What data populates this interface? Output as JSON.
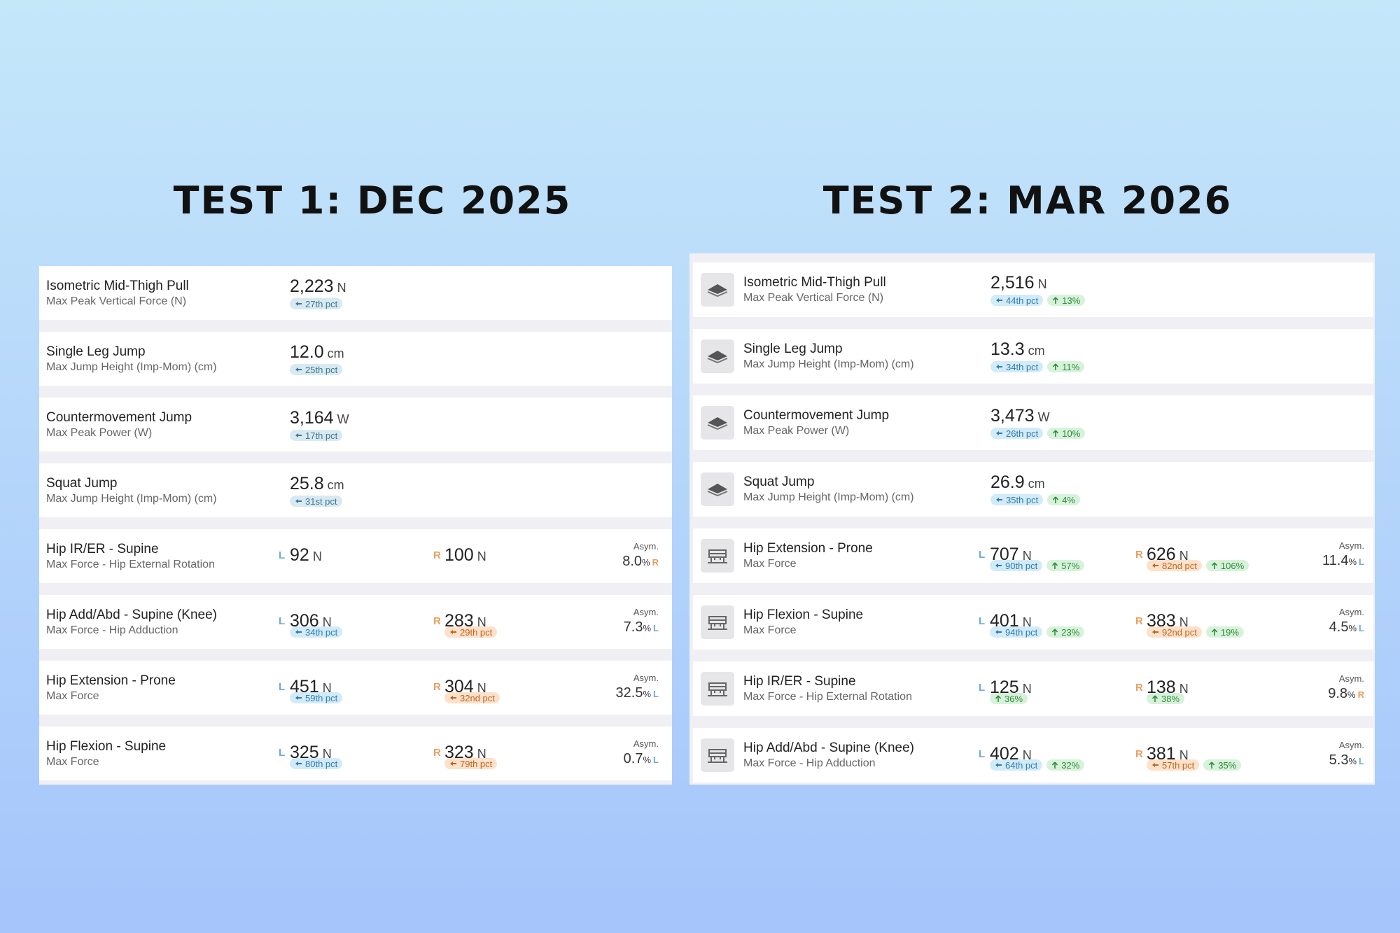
{
  "panels": [
    {
      "title": "TEST 1: DEC 2025",
      "rows": [
        {
          "name": "Isometric Mid-Thigh Pull",
          "metric": "Max Peak Vertical Force (N)",
          "value": "2,223",
          "unit": "N",
          "pct": "27th pct"
        },
        {
          "name": "Single Leg Jump",
          "metric": "Max Jump Height (Imp-Mom) (cm)",
          "value": "12.0",
          "unit": "cm",
          "pct": "25th pct"
        },
        {
          "name": "Countermovement Jump",
          "metric": "Max Peak Power (W)",
          "value": "3,164",
          "unit": "W",
          "pct": "17th pct"
        },
        {
          "name": "Squat Jump",
          "metric": "Max Jump Height (Imp-Mom) (cm)",
          "value": "25.8",
          "unit": "cm",
          "pct": "31st pct"
        },
        {
          "name": "Hip IR/ER - Supine",
          "metric": "Max Force - Hip External Rotation",
          "left": {
            "side": "L",
            "value": "92",
            "unit": "N"
          },
          "right": {
            "side": "R",
            "value": "100",
            "unit": "N"
          },
          "asym_label": "Asym.",
          "asym": "8.0",
          "asym_unit": "%",
          "asym_side": "R"
        },
        {
          "name": "Hip Add/Abd - Supine (Knee)",
          "metric": "Max Force - Hip Adduction",
          "left": {
            "side": "L",
            "value": "306",
            "unit": "N",
            "pct": "34th pct"
          },
          "right": {
            "side": "R",
            "value": "283",
            "unit": "N",
            "pct": "29th pct"
          },
          "asym_label": "Asym.",
          "asym": "7.3",
          "asym_unit": "%",
          "asym_side": "L"
        },
        {
          "name": "Hip Extension - Prone",
          "metric": "Max Force",
          "left": {
            "side": "L",
            "value": "451",
            "unit": "N",
            "pct": "59th pct"
          },
          "right": {
            "side": "R",
            "value": "304",
            "unit": "N",
            "pct": "32nd pct"
          },
          "asym_label": "Asym.",
          "asym": "32.5",
          "asym_unit": "%",
          "asym_side": "L"
        },
        {
          "name": "Hip Flexion - Supine",
          "metric": "Max Force",
          "left": {
            "side": "L",
            "value": "325",
            "unit": "N",
            "pct": "80th pct"
          },
          "right": {
            "side": "R",
            "value": "323",
            "unit": "N",
            "pct": "79th pct"
          },
          "asym_label": "Asym.",
          "asym": "0.7",
          "asym_unit": "%",
          "asym_side": "L"
        }
      ]
    },
    {
      "title": "TEST 2: MAR 2026",
      "rows": [
        {
          "name": "Isometric Mid-Thigh Pull",
          "metric": "Max Peak Vertical Force (N)",
          "value": "2,516",
          "unit": "N",
          "pct": "44th pct",
          "change": "13%"
        },
        {
          "name": "Single Leg Jump",
          "metric": "Max Jump Height (Imp-Mom) (cm)",
          "value": "13.3",
          "unit": "cm",
          "pct": "34th pct",
          "change": "11%"
        },
        {
          "name": "Countermovement Jump",
          "metric": "Max Peak Power (W)",
          "value": "3,473",
          "unit": "W",
          "pct": "26th pct",
          "change": "10%"
        },
        {
          "name": "Squat Jump",
          "metric": "Max Jump Height (Imp-Mom) (cm)",
          "value": "26.9",
          "unit": "cm",
          "pct": "35th pct",
          "change": "4%"
        },
        {
          "name": "Hip Extension - Prone",
          "metric": "Max Force",
          "left": {
            "side": "L",
            "value": "707",
            "unit": "N",
            "pct": "90th pct",
            "change": "57%"
          },
          "right": {
            "side": "R",
            "value": "626",
            "unit": "N",
            "pct": "82nd pct",
            "change": "106%"
          },
          "asym_label": "Asym.",
          "asym": "11.4",
          "asym_unit": "%",
          "asym_side": "L"
        },
        {
          "name": "Hip Flexion - Supine",
          "metric": "Max Force",
          "left": {
            "side": "L",
            "value": "401",
            "unit": "N",
            "pct": "94th pct",
            "change": "23%"
          },
          "right": {
            "side": "R",
            "value": "383",
            "unit": "N",
            "pct": "92nd pct",
            "change": "19%"
          },
          "asym_label": "Asym.",
          "asym": "4.5",
          "asym_unit": "%",
          "asym_side": "L"
        },
        {
          "name": "Hip IR/ER - Supine",
          "metric": "Max Force - Hip External Rotation",
          "left": {
            "side": "L",
            "value": "125",
            "unit": "N",
            "change": "36%"
          },
          "right": {
            "side": "R",
            "value": "138",
            "unit": "N",
            "change": "38%"
          },
          "asym_label": "Asym.",
          "asym": "9.8",
          "asym_unit": "%",
          "asym_side": "R"
        },
        {
          "name": "Hip Add/Abd - Supine (Knee)",
          "metric": "Max Force - Hip Adduction",
          "left": {
            "side": "L",
            "value": "402",
            "unit": "N",
            "pct": "64th pct",
            "change": "32%"
          },
          "right": {
            "side": "R",
            "value": "381",
            "unit": "N",
            "pct": "57th pct",
            "change": "35%"
          },
          "asym_label": "Asym.",
          "asym": "5.3",
          "asym_unit": "%",
          "asym_side": "L"
        }
      ]
    }
  ]
}
